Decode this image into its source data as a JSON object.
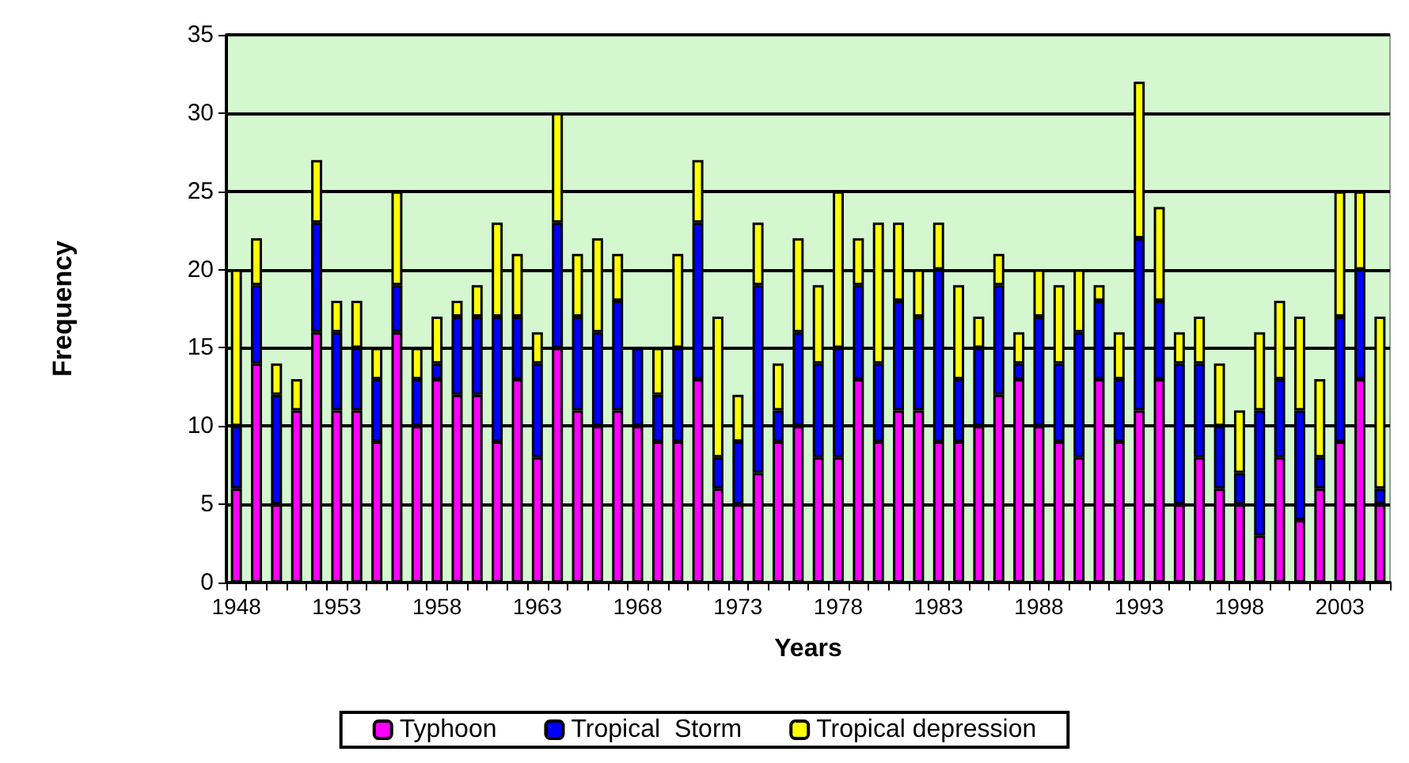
{
  "chart_data": {
    "type": "bar",
    "stacked": true,
    "xlabel": "Years",
    "ylabel": "Frequency",
    "categories": [
      "1948",
      null,
      null,
      null,
      null,
      "1953",
      null,
      null,
      null,
      null,
      "1958",
      null,
      null,
      null,
      null,
      "1963",
      null,
      null,
      null,
      null,
      "1968",
      null,
      null,
      null,
      null,
      "1973",
      null,
      null,
      null,
      null,
      "1978",
      null,
      null,
      null,
      null,
      "1983",
      null,
      null,
      null,
      null,
      "1988",
      null,
      null,
      null,
      null,
      "1993",
      null,
      null,
      null,
      null,
      "1998",
      null,
      null,
      null,
      null,
      "2003",
      null,
      null
    ],
    "series": [
      {
        "name": "Typhoon",
        "color": "#ff00ff",
        "values": [
          6,
          14,
          5,
          11,
          16,
          11,
          11,
          9,
          16,
          10,
          13,
          12,
          12,
          9,
          13,
          8,
          15,
          11,
          10,
          11,
          10,
          9,
          9,
          13,
          6,
          5,
          7,
          9,
          10,
          8,
          8,
          13,
          9,
          11,
          11,
          9,
          9,
          10,
          12,
          13,
          10,
          9,
          8,
          13,
          9,
          11,
          13,
          5,
          8,
          6,
          5,
          3,
          8,
          4,
          6,
          9,
          13,
          5
        ]
      },
      {
        "name": "Tropical  Storm",
        "color": "#0000ff",
        "values": [
          4,
          5,
          7,
          0,
          7,
          5,
          4,
          4,
          3,
          3,
          1,
          5,
          5,
          8,
          4,
          6,
          8,
          6,
          6,
          7,
          5,
          3,
          6,
          10,
          2,
          4,
          12,
          2,
          6,
          6,
          7,
          6,
          5,
          7,
          6,
          11,
          4,
          5,
          7,
          1,
          7,
          5,
          8,
          5,
          4,
          11,
          5,
          9,
          6,
          4,
          2,
          8,
          5,
          7,
          2,
          8,
          7,
          1
        ]
      },
      {
        "name": "Tropical depression",
        "color": "#ffff00",
        "values": [
          10,
          3,
          2,
          2,
          4,
          2,
          3,
          2,
          6,
          2,
          3,
          1,
          2,
          6,
          4,
          2,
          7,
          4,
          6,
          3,
          0,
          3,
          6,
          4,
          9,
          3,
          4,
          3,
          6,
          5,
          10,
          3,
          9,
          5,
          3,
          3,
          6,
          2,
          2,
          2,
          3,
          5,
          4,
          1,
          3,
          10,
          6,
          2,
          3,
          4,
          4,
          5,
          5,
          6,
          5,
          8,
          5,
          11
        ]
      }
    ],
    "ylim": [
      0,
      35
    ],
    "yticks": [
      0,
      5,
      10,
      15,
      20,
      25,
      30,
      35
    ],
    "grid": "y",
    "legend": "bottom"
  }
}
